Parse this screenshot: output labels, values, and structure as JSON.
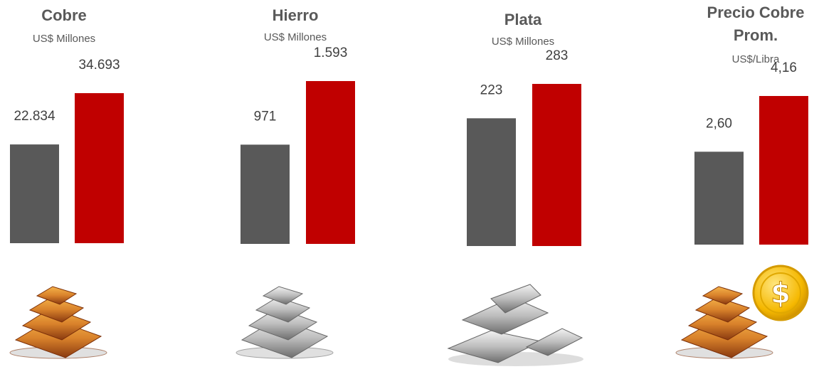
{
  "chart_data": [
    {
      "type": "bar",
      "title": "Cobre",
      "subtitle": "US$ Millones",
      "values": [
        22834,
        34693
      ],
      "value_labels": [
        "22.834",
        "34.693"
      ],
      "colors": [
        "#595959",
        "#c00000"
      ]
    },
    {
      "type": "bar",
      "title": "Hierro",
      "subtitle": "US$ Millones",
      "values": [
        971,
        1593
      ],
      "value_labels": [
        "971",
        "1.593"
      ],
      "colors": [
        "#595959",
        "#c00000"
      ]
    },
    {
      "type": "bar",
      "title": "Plata",
      "subtitle": "US$ Millones",
      "values": [
        223,
        283
      ],
      "value_labels": [
        "223",
        "283"
      ],
      "colors": [
        "#595959",
        "#c00000"
      ]
    },
    {
      "type": "bar",
      "title": "Precio Cobre Prom.",
      "subtitle": "US$/Libra",
      "values": [
        2.6,
        4.16
      ],
      "value_labels": [
        "2,60",
        "4,16"
      ],
      "colors": [
        "#595959",
        "#c00000"
      ]
    }
  ]
}
